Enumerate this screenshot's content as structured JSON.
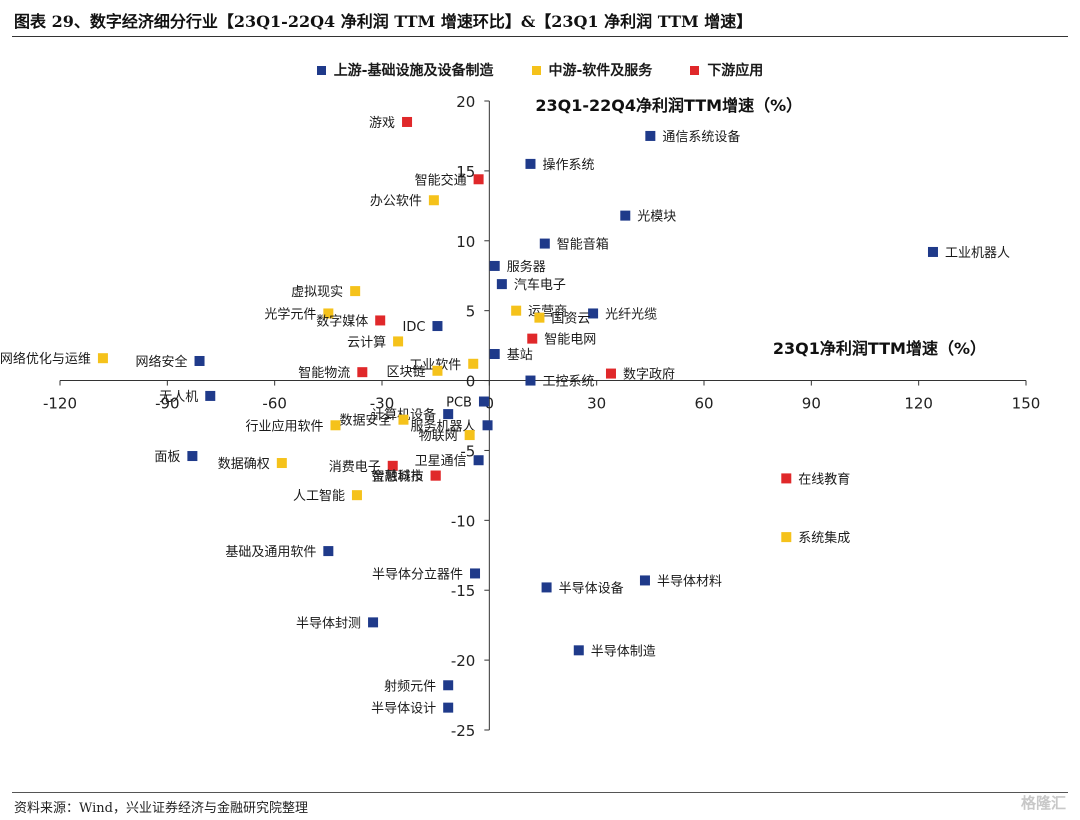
{
  "page": {
    "title": "图表 29、数字经济细分行业【23Q1-22Q4 净利润 TTM 增速环比】&【23Q1 净利润 TTM 增速】",
    "source": "资料来源：Wind，兴业证券经济与金融研究院整理",
    "watermark": "格隆汇"
  },
  "colors": {
    "upstream": "#1f3a8a",
    "midstream": "#f5c21b",
    "downstream": "#e0282a",
    "axis": "#333333"
  },
  "chart_data": {
    "type": "scatter",
    "ylabel": "23Q1-22Q4净利润TTM增速（%）",
    "xlabel": "23Q1净利润TTM增速（%）",
    "xlim": [
      -120,
      150
    ],
    "ylim": [
      -25,
      20
    ],
    "x_ticks": [
      -120,
      -90,
      -60,
      -30,
      0,
      30,
      60,
      90,
      120,
      150
    ],
    "y_ticks": [
      -25,
      -20,
      -15,
      -10,
      -5,
      0,
      5,
      10,
      15,
      20
    ],
    "legend_position": "top",
    "series": [
      {
        "name": "上游-基础设施及设备制造",
        "color": "#1f3a8a",
        "points": [
          {
            "label": "通信系统设备",
            "x": 45,
            "y": 17.5
          },
          {
            "label": "操作系统",
            "x": 11.5,
            "y": 15.5
          },
          {
            "label": "光模块",
            "x": 38,
            "y": 11.8
          },
          {
            "label": "智能音箱",
            "x": 15.5,
            "y": 9.8
          },
          {
            "label": "工业机器人",
            "x": 124,
            "y": 9.2
          },
          {
            "label": "服务器",
            "x": 1.5,
            "y": 8.2
          },
          {
            "label": "汽车电子",
            "x": 3.5,
            "y": 6.9
          },
          {
            "label": "光纤光缆",
            "x": 29,
            "y": 4.8
          },
          {
            "label": "IDC",
            "x": -14.5,
            "y": 3.9
          },
          {
            "label": "基站",
            "x": 1.5,
            "y": 1.9
          },
          {
            "label": "工控系统",
            "x": 11.5,
            "y": 0
          },
          {
            "label": "网络安全",
            "x": -81,
            "y": 1.4
          },
          {
            "label": "无人机",
            "x": -78,
            "y": -1.1
          },
          {
            "label": "PCB",
            "x": -1.5,
            "y": -1.5
          },
          {
            "label": "服务机器人",
            "x": -0.5,
            "y": -3.2
          },
          {
            "label": "计算机设备",
            "x": -11.5,
            "y": -2.4
          },
          {
            "label": "卫星通信",
            "x": -3,
            "y": -5.7
          },
          {
            "label": "面板",
            "x": -83,
            "y": -5.4
          },
          {
            "label": "基础及通用软件",
            "x": -45,
            "y": -12.2
          },
          {
            "label": "半导体分立器件",
            "x": -4,
            "y": -13.8
          },
          {
            "label": "半导体材料",
            "x": 43.5,
            "y": -14.3
          },
          {
            "label": "半导体设备",
            "x": 16,
            "y": -14.8
          },
          {
            "label": "半导体封测",
            "x": -32.5,
            "y": -17.3
          },
          {
            "label": "半导体制造",
            "x": 25,
            "y": -19.3
          },
          {
            "label": "射频元件",
            "x": -11.5,
            "y": -21.8
          },
          {
            "label": "半导体设计",
            "x": -11.5,
            "y": -23.4
          }
        ]
      },
      {
        "name": "中游-软件及服务",
        "color": "#f5c21b",
        "points": [
          {
            "label": "办公软件",
            "x": -15.5,
            "y": 12.9
          },
          {
            "label": "虚拟现实",
            "x": -37.5,
            "y": 6.4
          },
          {
            "label": "光学元件",
            "x": -45,
            "y": 4.8
          },
          {
            "label": "运营商",
            "x": 7.5,
            "y": 5
          },
          {
            "label": "国资云",
            "x": 14,
            "y": 4.5
          },
          {
            "label": "云计算",
            "x": -25.5,
            "y": 2.8
          },
          {
            "label": "网络优化与运维",
            "x": -108,
            "y": 1.6
          },
          {
            "label": "工业软件",
            "x": -4.5,
            "y": 1.2
          },
          {
            "label": "区块链",
            "x": -14.5,
            "y": 0.7
          },
          {
            "label": "行业应用软件",
            "x": -43,
            "y": -3.2
          },
          {
            "label": "数据安全",
            "x": -24,
            "y": -2.8
          },
          {
            "label": "物联网",
            "x": -5.5,
            "y": -3.9
          },
          {
            "label": "数据确权",
            "x": -58,
            "y": -5.9
          },
          {
            "label": "人工智能",
            "x": -37,
            "y": -8.2
          },
          {
            "label": "系统集成",
            "x": 83,
            "y": -11.2
          }
        ]
      },
      {
        "name": "下游应用",
        "color": "#e0282a",
        "points": [
          {
            "label": "游戏",
            "x": -23,
            "y": 18.5
          },
          {
            "label": "智能交通",
            "x": -3,
            "y": 14.4
          },
          {
            "label": "数字媒体",
            "x": -30.5,
            "y": 4.3
          },
          {
            "label": "智能电网",
            "x": 12,
            "y": 3
          },
          {
            "label": "智能物流",
            "x": -35.5,
            "y": 0.6
          },
          {
            "label": "数字政府",
            "x": 34,
            "y": 0.5
          },
          {
            "label": "消费电子",
            "x": -27,
            "y": -6.1
          },
          {
            "label": "金融科技",
            "x": -15,
            "y": -6.8
          },
          {
            "label": "智慧城市",
            "x": -15,
            "y": -6.8
          },
          {
            "label": "在线教育",
            "x": 83,
            "y": -7
          }
        ]
      }
    ]
  }
}
